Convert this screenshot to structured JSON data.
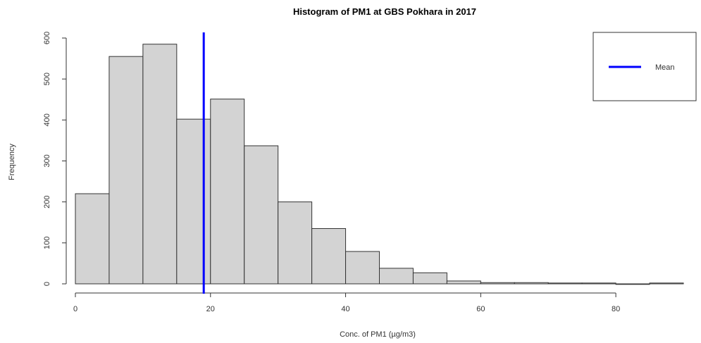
{
  "chart_data": {
    "type": "bar",
    "title": "Histogram of PM1 at GBS Pokhara in 2017",
    "xlabel": "Conc. of PM1 (µg/m3)",
    "ylabel": "Frequency",
    "bins": [
      {
        "start": 0,
        "end": 5,
        "count": 220
      },
      {
        "start": 5,
        "end": 10,
        "count": 555
      },
      {
        "start": 10,
        "end": 15,
        "count": 585
      },
      {
        "start": 15,
        "end": 20,
        "count": 402
      },
      {
        "start": 20,
        "end": 25,
        "count": 451
      },
      {
        "start": 25,
        "end": 30,
        "count": 337
      },
      {
        "start": 30,
        "end": 35,
        "count": 200
      },
      {
        "start": 35,
        "end": 40,
        "count": 135
      },
      {
        "start": 40,
        "end": 45,
        "count": 79
      },
      {
        "start": 45,
        "end": 50,
        "count": 38
      },
      {
        "start": 50,
        "end": 55,
        "count": 27
      },
      {
        "start": 55,
        "end": 60,
        "count": 7
      },
      {
        "start": 60,
        "end": 65,
        "count": 3
      },
      {
        "start": 65,
        "end": 70,
        "count": 3
      },
      {
        "start": 70,
        "end": 75,
        "count": 2
      },
      {
        "start": 75,
        "end": 80,
        "count": 2
      },
      {
        "start": 80,
        "end": 85,
        "count": 0
      },
      {
        "start": 85,
        "end": 90,
        "count": 2
      }
    ],
    "mean": 19,
    "xlim": [
      0,
      90
    ],
    "ylim": [
      0,
      600
    ],
    "xticks": [
      0,
      20,
      40,
      60,
      80
    ],
    "yticks": [
      0,
      100,
      200,
      300,
      400,
      500,
      600
    ],
    "bar_color": "#d3d3d3",
    "bar_edge_color": "#333333",
    "mean_line_color": "#0000ff",
    "legend": {
      "position": "top-right",
      "entries": [
        {
          "label": "Mean",
          "color": "#0000ff"
        }
      ]
    }
  }
}
